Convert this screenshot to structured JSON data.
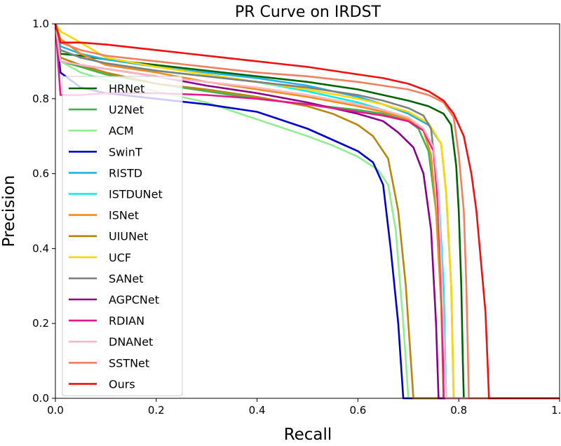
{
  "chart_data": {
    "type": "line",
    "title": "PR Curve on IRDST",
    "xlabel": "Recall",
    "ylabel": "Precision",
    "xlim": [
      0.0,
      1.0
    ],
    "ylim": [
      0.0,
      1.0
    ],
    "xticks": [
      "0.0",
      "0.2",
      "0.4",
      "0.6",
      "0.8",
      "1.0"
    ],
    "yticks": [
      "0.0",
      "0.2",
      "0.4",
      "0.6",
      "0.8",
      "1.0"
    ],
    "grid": false,
    "legend_position": "center-left",
    "series": [
      {
        "name": "HRNet",
        "color": "#006400",
        "points": [
          [
            0.0,
            1.0
          ],
          [
            0.01,
            0.92
          ],
          [
            0.05,
            0.915
          ],
          [
            0.1,
            0.905
          ],
          [
            0.2,
            0.89
          ],
          [
            0.3,
            0.875
          ],
          [
            0.4,
            0.86
          ],
          [
            0.5,
            0.845
          ],
          [
            0.6,
            0.825
          ],
          [
            0.65,
            0.81
          ],
          [
            0.7,
            0.795
          ],
          [
            0.74,
            0.78
          ],
          [
            0.77,
            0.76
          ],
          [
            0.785,
            0.73
          ],
          [
            0.795,
            0.62
          ],
          [
            0.8,
            0.5
          ],
          [
            0.805,
            0.3
          ],
          [
            0.808,
            0.1
          ],
          [
            0.81,
            0.0
          ],
          [
            1.0,
            0.0
          ]
        ]
      },
      {
        "name": "U2Net",
        "color": "#3cb44b",
        "points": [
          [
            0.0,
            1.0
          ],
          [
            0.01,
            0.9
          ],
          [
            0.05,
            0.885
          ],
          [
            0.1,
            0.865
          ],
          [
            0.2,
            0.84
          ],
          [
            0.3,
            0.82
          ],
          [
            0.4,
            0.8
          ],
          [
            0.5,
            0.785
          ],
          [
            0.6,
            0.77
          ],
          [
            0.65,
            0.76
          ],
          [
            0.7,
            0.74
          ],
          [
            0.72,
            0.72
          ],
          [
            0.74,
            0.66
          ],
          [
            0.755,
            0.5
          ],
          [
            0.765,
            0.3
          ],
          [
            0.77,
            0.0
          ],
          [
            1.0,
            0.0
          ]
        ]
      },
      {
        "name": "ACM",
        "color": "#90ee90",
        "points": [
          [
            0.0,
            1.0
          ],
          [
            0.01,
            0.9
          ],
          [
            0.05,
            0.87
          ],
          [
            0.1,
            0.85
          ],
          [
            0.2,
            0.82
          ],
          [
            0.3,
            0.79
          ],
          [
            0.4,
            0.745
          ],
          [
            0.5,
            0.7
          ],
          [
            0.55,
            0.675
          ],
          [
            0.6,
            0.645
          ],
          [
            0.64,
            0.61
          ],
          [
            0.66,
            0.57
          ],
          [
            0.675,
            0.45
          ],
          [
            0.69,
            0.2
          ],
          [
            0.7,
            0.0
          ],
          [
            1.0,
            0.0
          ]
        ]
      },
      {
        "name": "SwinT",
        "color": "#0000cd",
        "points": [
          [
            0.0,
            1.0
          ],
          [
            0.01,
            0.87
          ],
          [
            0.05,
            0.83
          ],
          [
            0.1,
            0.815
          ],
          [
            0.2,
            0.8
          ],
          [
            0.3,
            0.785
          ],
          [
            0.4,
            0.765
          ],
          [
            0.5,
            0.72
          ],
          [
            0.55,
            0.69
          ],
          [
            0.6,
            0.66
          ],
          [
            0.63,
            0.63
          ],
          [
            0.65,
            0.57
          ],
          [
            0.665,
            0.4
          ],
          [
            0.68,
            0.2
          ],
          [
            0.69,
            0.0
          ],
          [
            1.0,
            0.0
          ]
        ]
      },
      {
        "name": "RISTD",
        "color": "#1eb4e6",
        "points": [
          [
            0.0,
            1.0
          ],
          [
            0.01,
            0.94
          ],
          [
            0.05,
            0.92
          ],
          [
            0.1,
            0.905
          ],
          [
            0.2,
            0.885
          ],
          [
            0.3,
            0.87
          ],
          [
            0.4,
            0.855
          ],
          [
            0.5,
            0.835
          ],
          [
            0.6,
            0.805
          ],
          [
            0.65,
            0.785
          ],
          [
            0.7,
            0.76
          ],
          [
            0.74,
            0.73
          ],
          [
            0.765,
            0.68
          ],
          [
            0.775,
            0.55
          ],
          [
            0.785,
            0.3
          ],
          [
            0.79,
            0.0
          ],
          [
            1.0,
            0.0
          ]
        ]
      },
      {
        "name": "ISTDUNet",
        "color": "#00eeee",
        "points": [
          [
            0.0,
            1.0
          ],
          [
            0.01,
            0.93
          ],
          [
            0.05,
            0.91
          ],
          [
            0.1,
            0.895
          ],
          [
            0.2,
            0.875
          ],
          [
            0.3,
            0.86
          ],
          [
            0.4,
            0.845
          ],
          [
            0.5,
            0.82
          ],
          [
            0.6,
            0.79
          ],
          [
            0.65,
            0.77
          ],
          [
            0.7,
            0.745
          ],
          [
            0.73,
            0.72
          ],
          [
            0.75,
            0.67
          ],
          [
            0.76,
            0.55
          ],
          [
            0.77,
            0.3
          ],
          [
            0.775,
            0.0
          ],
          [
            1.0,
            0.0
          ]
        ]
      },
      {
        "name": "ISNet",
        "color": "#f28c1e",
        "points": [
          [
            0.0,
            1.0
          ],
          [
            0.01,
            0.96
          ],
          [
            0.05,
            0.92
          ],
          [
            0.1,
            0.89
          ],
          [
            0.2,
            0.87
          ],
          [
            0.3,
            0.845
          ],
          [
            0.4,
            0.825
          ],
          [
            0.5,
            0.805
          ],
          [
            0.6,
            0.78
          ],
          [
            0.65,
            0.765
          ],
          [
            0.7,
            0.745
          ],
          [
            0.73,
            0.715
          ],
          [
            0.745,
            0.65
          ],
          [
            0.755,
            0.5
          ],
          [
            0.765,
            0.25
          ],
          [
            0.77,
            0.0
          ],
          [
            1.0,
            0.0
          ]
        ]
      },
      {
        "name": "UIUNet",
        "color": "#b8860b",
        "points": [
          [
            0.0,
            1.0
          ],
          [
            0.01,
            0.91
          ],
          [
            0.05,
            0.89
          ],
          [
            0.1,
            0.87
          ],
          [
            0.2,
            0.84
          ],
          [
            0.3,
            0.825
          ],
          [
            0.4,
            0.805
          ],
          [
            0.5,
            0.78
          ],
          [
            0.55,
            0.76
          ],
          [
            0.6,
            0.73
          ],
          [
            0.63,
            0.7
          ],
          [
            0.66,
            0.64
          ],
          [
            0.68,
            0.5
          ],
          [
            0.695,
            0.3
          ],
          [
            0.705,
            0.1
          ],
          [
            0.71,
            0.0
          ],
          [
            1.0,
            0.0
          ]
        ]
      },
      {
        "name": "UCF",
        "color": "#ffd700",
        "points": [
          [
            0.0,
            1.0
          ],
          [
            0.01,
            0.98
          ],
          [
            0.05,
            0.95
          ],
          [
            0.1,
            0.91
          ],
          [
            0.2,
            0.885
          ],
          [
            0.3,
            0.865
          ],
          [
            0.4,
            0.845
          ],
          [
            0.5,
            0.825
          ],
          [
            0.6,
            0.8
          ],
          [
            0.65,
            0.785
          ],
          [
            0.7,
            0.765
          ],
          [
            0.74,
            0.735
          ],
          [
            0.765,
            0.68
          ],
          [
            0.775,
            0.55
          ],
          [
            0.785,
            0.3
          ],
          [
            0.79,
            0.0
          ],
          [
            1.0,
            0.0
          ]
        ]
      },
      {
        "name": "SANet",
        "color": "#808080",
        "points": [
          [
            0.0,
            1.0
          ],
          [
            0.01,
            0.93
          ],
          [
            0.05,
            0.91
          ],
          [
            0.1,
            0.895
          ],
          [
            0.2,
            0.875
          ],
          [
            0.3,
            0.86
          ],
          [
            0.4,
            0.845
          ],
          [
            0.5,
            0.83
          ],
          [
            0.6,
            0.81
          ],
          [
            0.65,
            0.795
          ],
          [
            0.7,
            0.775
          ],
          [
            0.73,
            0.755
          ],
          [
            0.745,
            0.72
          ],
          [
            0.755,
            0.6
          ],
          [
            0.765,
            0.35
          ],
          [
            0.77,
            0.0
          ],
          [
            1.0,
            0.0
          ]
        ]
      },
      {
        "name": "AGPCNet",
        "color": "#8b008b",
        "points": [
          [
            0.0,
            1.0
          ],
          [
            0.01,
            0.9
          ],
          [
            0.05,
            0.89
          ],
          [
            0.1,
            0.88
          ],
          [
            0.2,
            0.86
          ],
          [
            0.3,
            0.835
          ],
          [
            0.4,
            0.815
          ],
          [
            0.5,
            0.79
          ],
          [
            0.6,
            0.76
          ],
          [
            0.65,
            0.74
          ],
          [
            0.68,
            0.71
          ],
          [
            0.71,
            0.67
          ],
          [
            0.73,
            0.6
          ],
          [
            0.745,
            0.45
          ],
          [
            0.755,
            0.2
          ],
          [
            0.76,
            0.0
          ],
          [
            1.0,
            0.0
          ]
        ]
      },
      {
        "name": "RDIAN",
        "color": "#e6198c",
        "points": [
          [
            0.0,
            1.0
          ],
          [
            0.01,
            0.81
          ],
          [
            0.05,
            0.81
          ],
          [
            0.1,
            0.815
          ],
          [
            0.2,
            0.815
          ],
          [
            0.3,
            0.81
          ],
          [
            0.4,
            0.8
          ],
          [
            0.5,
            0.785
          ],
          [
            0.6,
            0.765
          ],
          [
            0.65,
            0.755
          ],
          [
            0.7,
            0.74
          ],
          [
            0.73,
            0.715
          ],
          [
            0.75,
            0.66
          ],
          [
            0.76,
            0.5
          ],
          [
            0.767,
            0.25
          ],
          [
            0.77,
            0.0
          ],
          [
            1.0,
            0.0
          ]
        ]
      },
      {
        "name": "DNANet",
        "color": "#ffb6c1",
        "points": [
          [
            0.0,
            1.0
          ],
          [
            0.01,
            0.9
          ],
          [
            0.05,
            0.89
          ],
          [
            0.1,
            0.88
          ],
          [
            0.2,
            0.86
          ],
          [
            0.3,
            0.845
          ],
          [
            0.4,
            0.83
          ],
          [
            0.5,
            0.81
          ],
          [
            0.6,
            0.785
          ],
          [
            0.65,
            0.77
          ],
          [
            0.7,
            0.75
          ],
          [
            0.73,
            0.72
          ],
          [
            0.75,
            0.67
          ],
          [
            0.76,
            0.55
          ],
          [
            0.767,
            0.3
          ],
          [
            0.775,
            0.0
          ],
          [
            1.0,
            0.0
          ]
        ]
      },
      {
        "name": "SSTNet",
        "color": "#f08060",
        "points": [
          [
            0.0,
            1.0
          ],
          [
            0.01,
            0.95
          ],
          [
            0.05,
            0.93
          ],
          [
            0.1,
            0.915
          ],
          [
            0.2,
            0.9
          ],
          [
            0.3,
            0.885
          ],
          [
            0.4,
            0.87
          ],
          [
            0.5,
            0.86
          ],
          [
            0.6,
            0.845
          ],
          [
            0.65,
            0.835
          ],
          [
            0.7,
            0.825
          ],
          [
            0.74,
            0.81
          ],
          [
            0.77,
            0.79
          ],
          [
            0.79,
            0.75
          ],
          [
            0.8,
            0.65
          ],
          [
            0.81,
            0.5
          ],
          [
            0.815,
            0.3
          ],
          [
            0.82,
            0.0
          ],
          [
            1.0,
            0.0
          ]
        ]
      },
      {
        "name": "Ours",
        "color": "#ee1111",
        "points": [
          [
            0.0,
            1.0
          ],
          [
            0.01,
            0.95
          ],
          [
            0.05,
            0.95
          ],
          [
            0.1,
            0.945
          ],
          [
            0.2,
            0.93
          ],
          [
            0.3,
            0.915
          ],
          [
            0.4,
            0.9
          ],
          [
            0.5,
            0.885
          ],
          [
            0.6,
            0.865
          ],
          [
            0.65,
            0.855
          ],
          [
            0.7,
            0.84
          ],
          [
            0.74,
            0.82
          ],
          [
            0.77,
            0.795
          ],
          [
            0.79,
            0.76
          ],
          [
            0.81,
            0.7
          ],
          [
            0.825,
            0.6
          ],
          [
            0.835,
            0.5
          ],
          [
            0.845,
            0.35
          ],
          [
            0.853,
            0.23
          ],
          [
            0.857,
            0.1
          ],
          [
            0.86,
            0.0
          ],
          [
            1.0,
            0.0
          ]
        ]
      }
    ]
  }
}
